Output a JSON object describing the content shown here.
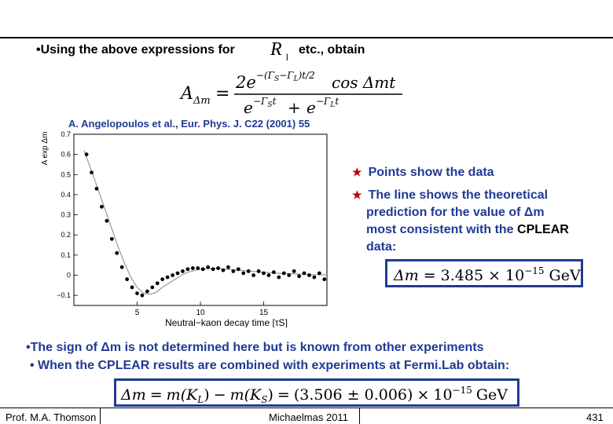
{
  "slide": {
    "bullet1_prefix": "•Using the above expressions for",
    "bullet1_symbol": "R",
    "bullet1_symbol_sub": "l",
    "bullet1_suffix": "etc., obtain",
    "formula": {
      "lhs": "A",
      "lhs_sub": "Δm",
      "equals": "=",
      "numerator_coeff": "2e",
      "numerator_exp": "−(Γ",
      "numerator_exp_s": "S",
      "numerator_exp_minus": "−Γ",
      "numerator_exp_l": "L",
      "numerator_exp_tail": ")t/2",
      "numerator_cos": "cos Δmt",
      "denominator_e1": "e",
      "denominator_e1_exp": "−Γ",
      "denominator_e1_exp_s": "S",
      "denominator_e1_exp_t": "t",
      "denominator_plus": "+",
      "denominator_e2": "e",
      "denominator_e2_exp": "−Γ",
      "denominator_e2_exp_l": "L",
      "denominator_e2_exp_t": "t"
    },
    "reference": "A. Angelopoulos et al., Eur. Phys. J. C22 (2001) 55",
    "points_text": "Points show the data",
    "line_text_1": "The line shows the theoretical",
    "line_text_2": "prediction for the value of",
    "line_text_2_sym": "Δm",
    "line_text_3_pre": "most consistent with the",
    "line_text_3_name": "CPLEAR",
    "line_text_4": "data:",
    "result_box": {
      "lhs": "Δm",
      "eq": "=",
      "value": "3.485",
      "times": "×",
      "base": "10",
      "exp": "−15",
      "unit": "GeV"
    },
    "bottom1_pre": "•The sign of",
    "bottom1_sym": "Δm",
    "bottom1_post": "is not determined here but is known from other experiments",
    "bottom2": "• When the CPLEAR results are combined with experiments at Fermi.Lab obtain:",
    "final_box": {
      "lhs": "Δm",
      "eq1": "=",
      "mkl": "m(K",
      "mkl_sub": "L",
      "mkl_close": ")",
      "minus": "−",
      "mks": "m(K",
      "mks_sub": "S",
      "mks_close": ")",
      "eq2": "=",
      "value": "(3.506 ± 0.006)",
      "times": "×",
      "base": "10",
      "exp": "−15",
      "unit": "GeV"
    },
    "footer_left": "Prof. M.A. Thomson",
    "footer_mid": "Michaelmas 2011",
    "footer_right": "431"
  },
  "chart_data": {
    "type": "scatter",
    "title": "",
    "xlabel": "Neutral−kaon decay time [τS]",
    "ylabel": "A exp Δm",
    "xlim": [
      0,
      20
    ],
    "ylim": [
      -0.15,
      0.7
    ],
    "yticks": [
      -0.1,
      0,
      0.1,
      0.2,
      0.3,
      0.4,
      0.5,
      0.6,
      0.7
    ],
    "ytick_labels": [
      "−0.1",
      "0",
      "0.1",
      "0.2",
      "0.3",
      "0.4",
      "0.5",
      "0.6",
      "0.7"
    ],
    "xticks": [
      5,
      10,
      15
    ],
    "xtick_labels": [
      "5",
      "10",
      "15"
    ],
    "series": [
      {
        "role": "data",
        "x": [
          1.0,
          1.4,
          1.8,
          2.2,
          2.6,
          3.0,
          3.4,
          3.8,
          4.2,
          4.6,
          5.0,
          5.4,
          5.8,
          6.2,
          6.6,
          7.0,
          7.4,
          7.8,
          8.2,
          8.6,
          9.0,
          9.4,
          9.8,
          10.2,
          10.6,
          11.0,
          11.4,
          11.8,
          12.2,
          12.6,
          13.0,
          13.4,
          13.8,
          14.2,
          14.6,
          15.0,
          15.4,
          15.8,
          16.2,
          16.6,
          17.0,
          17.4,
          17.8,
          18.2,
          18.6,
          19.0,
          19.4,
          19.8
        ],
        "y": [
          0.6,
          0.51,
          0.43,
          0.34,
          0.27,
          0.18,
          0.11,
          0.04,
          -0.02,
          -0.06,
          -0.09,
          -0.1,
          -0.08,
          -0.06,
          -0.04,
          -0.02,
          -0.01,
          0.0,
          0.01,
          0.02,
          0.03,
          0.035,
          0.035,
          0.03,
          0.04,
          0.03,
          0.035,
          0.025,
          0.04,
          0.02,
          0.03,
          0.01,
          0.02,
          0.0,
          0.02,
          0.01,
          0.0,
          0.015,
          -0.01,
          0.01,
          0.0,
          0.02,
          -0.005,
          0.01,
          0.0,
          -0.01,
          0.01,
          -0.02
        ]
      },
      {
        "role": "theory",
        "x": [
          0.8,
          1.5,
          2.0,
          2.5,
          3.0,
          3.5,
          4.0,
          4.5,
          5.0,
          5.5,
          6.0,
          6.5,
          7.0,
          7.5,
          8.0,
          8.5,
          9.0,
          10.0,
          11.0,
          12.0,
          13.0,
          14.0,
          15.0,
          16.0,
          17.0,
          18.0,
          19.0,
          20.0
        ],
        "y": [
          0.62,
          0.5,
          0.41,
          0.32,
          0.23,
          0.14,
          0.06,
          -0.01,
          -0.06,
          -0.09,
          -0.095,
          -0.085,
          -0.06,
          -0.04,
          -0.02,
          0.0,
          0.015,
          0.03,
          0.035,
          0.03,
          0.025,
          0.02,
          0.015,
          0.01,
          0.008,
          0.005,
          0.003,
          0.002
        ]
      }
    ],
    "grid": false,
    "legend": "none"
  }
}
